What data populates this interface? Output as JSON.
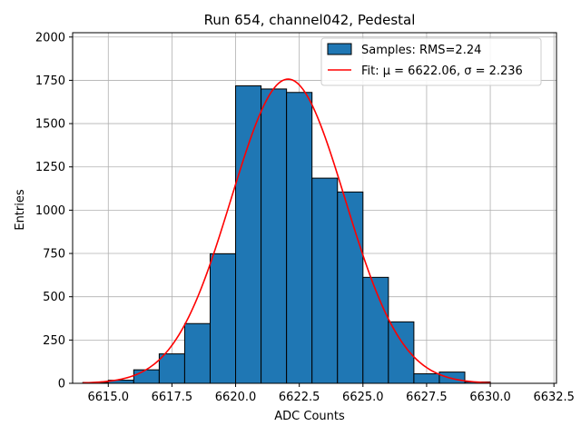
{
  "chart_data": {
    "type": "bar",
    "title": "Run 654, channel042, Pedestal",
    "xlabel": "ADC Counts",
    "ylabel": "Entries",
    "xlim": [
      6613.6,
      6632.6
    ],
    "ylim": [
      0,
      2025
    ],
    "xticks": [
      6615.0,
      6617.5,
      6620.0,
      6622.5,
      6625.0,
      6627.5,
      6630.0,
      6632.5
    ],
    "xtick_labels": [
      "6615.0",
      "6617.5",
      "6620.0",
      "6622.5",
      "6625.0",
      "6627.5",
      "6630.0",
      "6632.5"
    ],
    "yticks": [
      0,
      250,
      500,
      750,
      1000,
      1250,
      1500,
      1750,
      2000
    ],
    "ytick_labels": [
      "0",
      "250",
      "500",
      "750",
      "1000",
      "1250",
      "1500",
      "1750",
      "2000"
    ],
    "grid": true,
    "legend_position": "top-right",
    "histogram": {
      "name": "Samples: RMS=2.24",
      "color": "#1f77b4",
      "edge_color": "#000000",
      "bin_edges": [
        6614,
        6615,
        6616,
        6617,
        6618,
        6619,
        6620,
        6621,
        6622,
        6623,
        6624,
        6625,
        6626,
        6627,
        6628,
        6629,
        6630
      ],
      "counts": [
        5,
        18,
        78,
        170,
        345,
        748,
        1718,
        1700,
        1680,
        1185,
        1105,
        612,
        355,
        55,
        65,
        8
      ]
    },
    "fit": {
      "name": "Fit: μ = 6622.06, σ = 2.236",
      "color": "#ff0000",
      "mu": 6622.06,
      "sigma": 2.236,
      "amplitude": 1757,
      "x_range": [
        6614,
        6630
      ]
    }
  }
}
